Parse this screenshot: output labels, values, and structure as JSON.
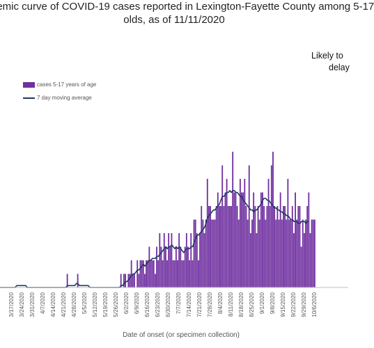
{
  "colors": {
    "bars": "#7030a0",
    "line": "#1f3864",
    "axis": "#bfbfbf",
    "tick_text": "#555555"
  },
  "chart_data": {
    "type": "bar",
    "title_line1": "demic curve of COVID-19 cases reported in Lexington-Fayette County among 5-17",
    "title_line2": "olds, as of 11/11/2020",
    "annotation_line1": "Likely to",
    "annotation_line2": "delay",
    "xlabel": "Date of onset (or specimen collection)",
    "legend_position": "top-left",
    "x_tick_labels": [
      "3/17/2020",
      "3/24/2020",
      "3/31/2020",
      "4/7/2020",
      "4/14/2020",
      "4/21/2020",
      "4/28/2020",
      "5/5/2020",
      "5/12/2020",
      "5/19/2020",
      "5/26/2020",
      "6/2/2020",
      "6/9/2020",
      "6/16/2020",
      "6/23/2020",
      "6/30/2020",
      "7/7/2020",
      "7/14/2020",
      "7/21/2020",
      "7/28/2020",
      "8/4/2020",
      "8/11/2020",
      "8/18/2020",
      "8/25/2020",
      "9/1/2020",
      "9/8/2020",
      "9/15/2020",
      "9/22/2020",
      "9/29/2020",
      "10/6/2020"
    ],
    "first_date": "3/10/2020",
    "series": [
      {
        "name": "cases 5-17 years of age",
        "type": "bar",
        "values": [
          0,
          0,
          0,
          0,
          0,
          0,
          0,
          0,
          0,
          0,
          0,
          0,
          0,
          0,
          0,
          0,
          0,
          0,
          0,
          0,
          0,
          0,
          0,
          0,
          0,
          0,
          0,
          0,
          0,
          0,
          0,
          0,
          0,
          0,
          0,
          0,
          0,
          0,
          0,
          0,
          0,
          0,
          0,
          0,
          0,
          0,
          0,
          0,
          1,
          0,
          0,
          0,
          0,
          0,
          0,
          1,
          0,
          0,
          0,
          0,
          0,
          0,
          0,
          0,
          0,
          0,
          0,
          0,
          0,
          0,
          0,
          0,
          0,
          0,
          0,
          0,
          0,
          0,
          0,
          0,
          0,
          0,
          0,
          0,
          1,
          0,
          1,
          1,
          0,
          1,
          1,
          2,
          1,
          1,
          0,
          2,
          1,
          2,
          2,
          2,
          1,
          2,
          2,
          3,
          2,
          2,
          2,
          1,
          3,
          2,
          4,
          3,
          2,
          4,
          3,
          2,
          4,
          3,
          4,
          2,
          2,
          3,
          2,
          4,
          3,
          2,
          2,
          3,
          4,
          3,
          2,
          4,
          2,
          5,
          5,
          4,
          2,
          4,
          6,
          5,
          4,
          5,
          8,
          6,
          6,
          5,
          5,
          5,
          6,
          7,
          6,
          6,
          9,
          6,
          7,
          8,
          6,
          6,
          6,
          10,
          7,
          7,
          6,
          5,
          8,
          7,
          7,
          8,
          6,
          5,
          9,
          4,
          5,
          7,
          6,
          4,
          6,
          5,
          7,
          7,
          6,
          5,
          6,
          8,
          6,
          9,
          10,
          6,
          5,
          6,
          5,
          7,
          5,
          6,
          6,
          5,
          8,
          5,
          5,
          6,
          4,
          7,
          5,
          6,
          6,
          3,
          5,
          4,
          5,
          6,
          7,
          4,
          5,
          5,
          5
        ]
      },
      {
        "name": "7 day moving average",
        "type": "line",
        "values": [
          0,
          0,
          0,
          0,
          0,
          0,
          0,
          0,
          0,
          0,
          0,
          0,
          0,
          0,
          0.14,
          0.14,
          0.14,
          0.14,
          0.14,
          0.14,
          0.14,
          0,
          0,
          0,
          0,
          0,
          0,
          0,
          0,
          0,
          0,
          0,
          0,
          0,
          0,
          0,
          0,
          0,
          0,
          0,
          0,
          0,
          0,
          0,
          0,
          0,
          0,
          0,
          0.14,
          0.14,
          0.14,
          0.14,
          0.14,
          0.14,
          0.29,
          0.29,
          0.14,
          0.14,
          0.14,
          0.14,
          0.14,
          0.14,
          0.14,
          0,
          0,
          0,
          0,
          0,
          0,
          0,
          0,
          0,
          0,
          0,
          0,
          0,
          0,
          0,
          0,
          0,
          0,
          0,
          0,
          0,
          0.14,
          0.14,
          0.29,
          0.43,
          0.43,
          0.57,
          0.71,
          0.86,
          1.0,
          1.0,
          1.14,
          1.29,
          1.29,
          1.43,
          1.57,
          1.71,
          1.57,
          1.71,
          1.86,
          2.0,
          2.0,
          2.14,
          2.14,
          2.14,
          2.29,
          2.29,
          2.43,
          2.57,
          2.71,
          2.86,
          3.0,
          2.86,
          3.0,
          3.0,
          3.14,
          3.0,
          2.86,
          3.0,
          2.86,
          3.0,
          2.86,
          2.71,
          2.57,
          2.71,
          2.86,
          2.86,
          2.86,
          3.0,
          3.0,
          3.29,
          3.57,
          3.86,
          3.86,
          4.0,
          4.14,
          4.29,
          4.43,
          4.71,
          5.14,
          5.29,
          5.43,
          5.57,
          5.71,
          5.71,
          5.86,
          6.0,
          6.14,
          6.43,
          6.71,
          6.71,
          6.86,
          7.0,
          7.0,
          7.14,
          7.0,
          7.14,
          7.14,
          7.0,
          7.0,
          6.86,
          6.71,
          6.71,
          6.43,
          6.29,
          6.14,
          6.0,
          5.86,
          5.71,
          5.71,
          5.57,
          5.71,
          5.71,
          5.86,
          6.0,
          6.14,
          6.43,
          6.57,
          6.57,
          6.43,
          6.43,
          6.29,
          6.14,
          6.0,
          5.86,
          5.86,
          5.71,
          5.71,
          5.57,
          5.57,
          5.43,
          5.43,
          5.29,
          5.29,
          5.14,
          5.0,
          5.0,
          4.86,
          4.86,
          4.86,
          4.71,
          4.71,
          4.86,
          4.86,
          4.86,
          4.71,
          4.86,
          4.86
        ]
      }
    ]
  }
}
